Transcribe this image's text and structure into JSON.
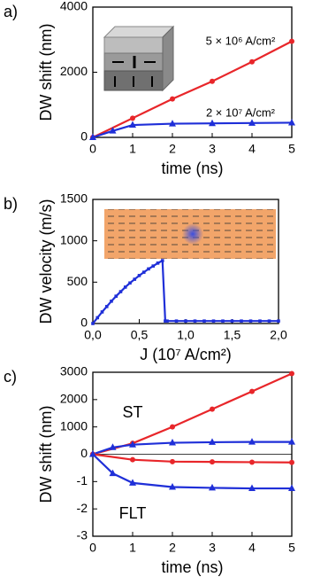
{
  "chart_data": [
    {
      "type": "line",
      "panel_label": "a)",
      "xlabel": "time (ns)",
      "ylabel": "DW shift (nm)",
      "xlim": [
        0,
        5
      ],
      "ylim": [
        0,
        4000
      ],
      "xticks": [
        0,
        1,
        2,
        3,
        4,
        5
      ],
      "yticks": [
        0,
        2000,
        4000
      ],
      "annotations": [
        "5 × 10⁶ A/cm²",
        "2 × 10⁷ A/cm²"
      ],
      "series": [
        {
          "color": "#e8262a",
          "marker": "circle",
          "x": [
            0,
            1,
            2,
            3,
            4,
            5
          ],
          "values": [
            0,
            590,
            1180,
            1720,
            2320,
            2950
          ]
        },
        {
          "color": "#1f2fd8",
          "marker": "triangle",
          "x": [
            0,
            0.5,
            1,
            2,
            3,
            4,
            5
          ],
          "values": [
            0,
            200,
            380,
            420,
            430,
            440,
            450
          ]
        }
      ]
    },
    {
      "type": "line",
      "panel_label": "b)",
      "xlabel": "J (10⁷ A/cm²)",
      "ylabel": "DW velocity (m/s)",
      "xlim": [
        0,
        2
      ],
      "ylim": [
        0,
        1500
      ],
      "xticks": [
        {
          "value": 0,
          "label": "0,0"
        },
        {
          "value": 0.5,
          "label": "0,5"
        },
        {
          "value": 1,
          "label": "1,0"
        },
        {
          "value": 1.5,
          "label": "1,5"
        },
        {
          "value": 2,
          "label": "2,0"
        }
      ],
      "yticks": [
        0,
        500,
        1000,
        1500
      ],
      "series": [
        {
          "color": "#1f2fd8",
          "marker": "square",
          "x": [
            0,
            0.05,
            0.1,
            0.15,
            0.2,
            0.25,
            0.3,
            0.35,
            0.4,
            0.45,
            0.5,
            0.55,
            0.6,
            0.65,
            0.7,
            0.75,
            0.78,
            0.8,
            0.9,
            1.0,
            1.1,
            1.2,
            1.3,
            1.4,
            1.5,
            1.6,
            1.7,
            1.8,
            1.9,
            2.0
          ],
          "values": [
            0,
            70,
            140,
            205,
            270,
            330,
            385,
            440,
            490,
            535,
            580,
            620,
            660,
            695,
            730,
            760,
            30,
            30,
            30,
            30,
            30,
            30,
            30,
            30,
            30,
            30,
            30,
            30,
            30,
            30
          ]
        }
      ]
    },
    {
      "type": "line",
      "panel_label": "c)",
      "xlabel": "time (ns)",
      "ylabel": "DW shift (nm)",
      "zero_line": true,
      "xlim": [
        0,
        5
      ],
      "ylim": [
        -3,
        3
      ],
      "xticks": [
        0,
        1,
        2,
        3,
        4,
        5
      ],
      "yticks": [
        {
          "value": 3,
          "label": "3000"
        },
        {
          "value": 2,
          "label": "2000"
        },
        {
          "value": 1,
          "label": "1000"
        },
        0,
        -1,
        -2,
        -3
      ],
      "annotations": [
        "ST",
        "FLT"
      ],
      "series": [
        {
          "color": "#e8262a",
          "marker": "circle",
          "x": [
            0,
            1,
            2,
            3,
            4,
            5
          ],
          "values": [
            0,
            0.4,
            1.0,
            1.65,
            2.3,
            2.95
          ]
        },
        {
          "color": "#1f2fd8",
          "marker": "triangle",
          "x": [
            0,
            0.5,
            1,
            2,
            3,
            4,
            5
          ],
          "values": [
            0,
            0.25,
            0.35,
            0.42,
            0.44,
            0.45,
            0.45
          ]
        },
        {
          "color": "#e8262a",
          "marker": "circle",
          "x": [
            0,
            1,
            2,
            3,
            4,
            5
          ],
          "values": [
            0,
            -0.2,
            -0.27,
            -0.28,
            -0.29,
            -0.3
          ]
        },
        {
          "color": "#1f2fd8",
          "marker": "triangle",
          "x": [
            0,
            0.5,
            1,
            2,
            3,
            4,
            5
          ],
          "values": [
            0,
            -0.7,
            -1.05,
            -1.2,
            -1.23,
            -1.25,
            -1.25
          ]
        }
      ]
    }
  ]
}
